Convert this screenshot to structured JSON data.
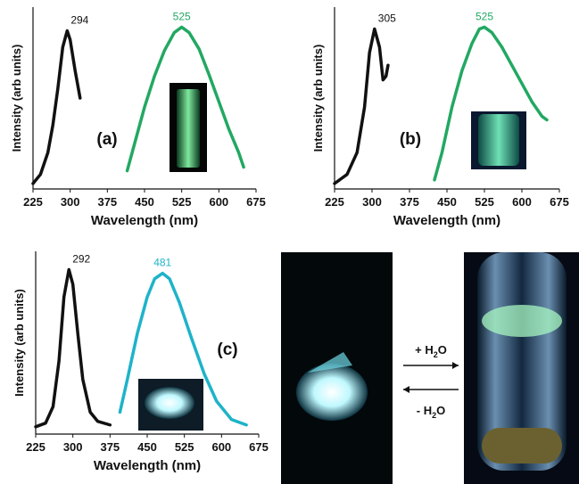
{
  "chart_data": [
    {
      "type": "line",
      "panel_label": "(a)",
      "x_label": "Wavelength (nm)",
      "y_label": "Intensity (arb units)",
      "xlim": [
        225,
        675
      ],
      "xticks": [
        225,
        300,
        375,
        450,
        525,
        600,
        675
      ],
      "ylim": [
        0,
        1
      ],
      "series": [
        {
          "color": "#111111",
          "peak": 294,
          "x": [
            225,
            240,
            255,
            265,
            275,
            285,
            294,
            300,
            310,
            320
          ],
          "values": [
            0.03,
            0.08,
            0.2,
            0.35,
            0.55,
            0.78,
            0.87,
            0.82,
            0.65,
            0.5
          ]
        },
        {
          "color": "#22a862",
          "peak": 525,
          "x": [
            415,
            430,
            450,
            470,
            490,
            510,
            525,
            540,
            560,
            580,
            600,
            620,
            640,
            650
          ],
          "values": [
            0.1,
            0.25,
            0.45,
            0.62,
            0.76,
            0.86,
            0.89,
            0.86,
            0.77,
            0.63,
            0.48,
            0.33,
            0.2,
            0.12
          ]
        }
      ]
    },
    {
      "type": "line",
      "panel_label": "(b)",
      "x_label": "Wavelength (nm)",
      "y_label": "Intensity (arb units)",
      "xlim": [
        225,
        675
      ],
      "xticks": [
        225,
        300,
        375,
        450,
        525,
        600,
        675
      ],
      "ylim": [
        0,
        1
      ],
      "series": [
        {
          "color": "#111111",
          "peak": 305,
          "x": [
            225,
            250,
            270,
            285,
            295,
            305,
            315,
            322,
            328,
            332
          ],
          "values": [
            0.03,
            0.08,
            0.2,
            0.45,
            0.75,
            0.88,
            0.78,
            0.6,
            0.62,
            0.68
          ]
        },
        {
          "color": "#22a862",
          "peak": 525,
          "x": [
            425,
            440,
            460,
            480,
            500,
            515,
            525,
            540,
            560,
            580,
            600,
            620,
            640,
            650
          ],
          "values": [
            0.05,
            0.2,
            0.45,
            0.65,
            0.8,
            0.88,
            0.89,
            0.86,
            0.78,
            0.68,
            0.58,
            0.48,
            0.4,
            0.38
          ]
        }
      ]
    },
    {
      "type": "line",
      "panel_label": "(c)",
      "x_label": "Wavelength (nm)",
      "y_label": "Intensity (arb units)",
      "xlim": [
        225,
        675
      ],
      "xticks": [
        225,
        300,
        375,
        450,
        525,
        600,
        675
      ],
      "ylim": [
        0,
        1
      ],
      "series": [
        {
          "color": "#111111",
          "peak": 292,
          "x": [
            225,
            245,
            260,
            272,
            282,
            292,
            300,
            310,
            320,
            335,
            350,
            375
          ],
          "values": [
            0.04,
            0.06,
            0.15,
            0.4,
            0.75,
            0.9,
            0.82,
            0.55,
            0.3,
            0.12,
            0.07,
            0.05
          ]
        },
        {
          "color": "#1eb3c9",
          "peak": 481,
          "x": [
            395,
            410,
            430,
            450,
            465,
            481,
            495,
            515,
            540,
            565,
            590,
            620,
            650
          ],
          "values": [
            0.12,
            0.3,
            0.55,
            0.75,
            0.85,
            0.88,
            0.85,
            0.72,
            0.52,
            0.33,
            0.18,
            0.08,
            0.05
          ]
        }
      ]
    }
  ],
  "reaction": {
    "forward": {
      "pre": "+ H",
      "sub": "2",
      "post": "O"
    },
    "backward": {
      "pre": "- H",
      "sub": "2",
      "post": "O"
    }
  }
}
